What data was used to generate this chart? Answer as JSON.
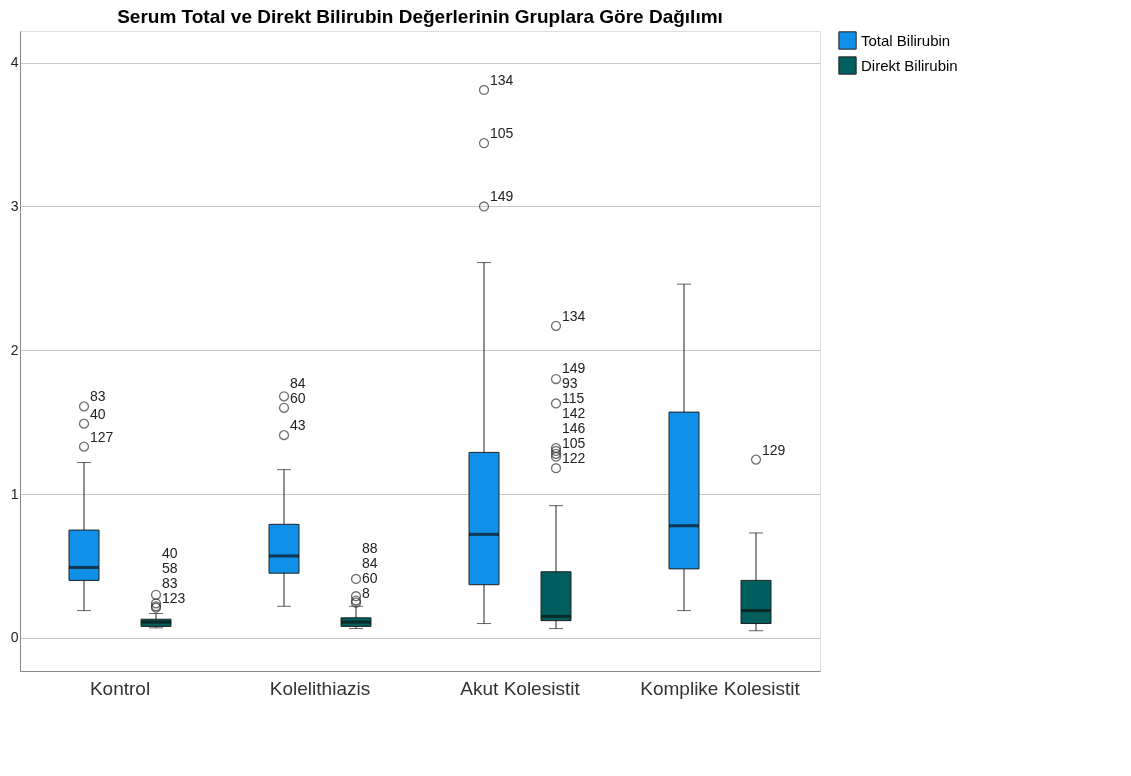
{
  "chart_data": {
    "type": "box",
    "title": "Serum Total ve Direkt Bilirubin Değerlerinin Gruplara Göre Dağılımı",
    "categories": [
      "Kontrol",
      "Kolelithiazis",
      "Akut Kolesistit",
      "Komplike Kolesistit"
    ],
    "series": [
      {
        "name": "Total Bilirubin",
        "color": "#1090e6",
        "boxes": [
          {
            "low": 0.19,
            "q1": 0.4,
            "median": 0.49,
            "q3": 0.75,
            "high": 1.22,
            "outliers": [
              1.33,
              1.49,
              1.61
            ]
          },
          {
            "low": 0.22,
            "q1": 0.45,
            "median": 0.57,
            "q3": 0.79,
            "high": 1.17,
            "outliers": [
              1.41,
              1.6,
              1.68
            ]
          },
          {
            "low": 0.1,
            "q1": 0.37,
            "median": 0.72,
            "q3": 1.29,
            "high": 2.61,
            "outliers": [
              3.0,
              3.44,
              3.81
            ]
          },
          {
            "low": 0.19,
            "q1": 0.48,
            "median": 0.78,
            "q3": 1.57,
            "high": 2.46
          }
        ]
      },
      {
        "name": "Direkt Bilirubin",
        "color": "#005e5e",
        "boxes": [
          {
            "low": 0.07,
            "q1": 0.08,
            "median": 0.11,
            "q3": 0.13,
            "high": 0.17,
            "outliers": [
              0.21,
              0.22,
              0.24,
              0.3
            ]
          },
          {
            "low": 0.065,
            "q1": 0.08,
            "median": 0.11,
            "q3": 0.14,
            "high": 0.22,
            "outliers": [
              0.245,
              0.26,
              0.29,
              0.41
            ]
          },
          {
            "low": 0.065,
            "q1": 0.12,
            "median": 0.15,
            "q3": 0.46,
            "high": 0.92,
            "outliers": [
              1.18,
              1.26,
              1.28,
              1.3,
              1.32,
              1.63,
              1.8,
              2.17
            ]
          },
          {
            "low": 0.05,
            "q1": 0.1,
            "median": 0.19,
            "q3": 0.4,
            "high": 0.73,
            "outliers": [
              1.24
            ]
          }
        ]
      }
    ],
    "ylim": [
      -0.23,
      4.22
    ],
    "yticks": [
      0,
      1,
      2,
      3,
      4
    ],
    "grid": "y",
    "legend": "top right",
    "marker": "circle",
    "annotations": [
      "83",
      "40",
      "127",
      "40",
      "58",
      "83",
      "123",
      "84",
      "60",
      "43",
      "88",
      "84",
      "60",
      "8",
      "134",
      "105",
      "149",
      "134",
      "149",
      "93",
      "115",
      "142",
      "146",
      "105",
      "122",
      "129"
    ]
  }
}
